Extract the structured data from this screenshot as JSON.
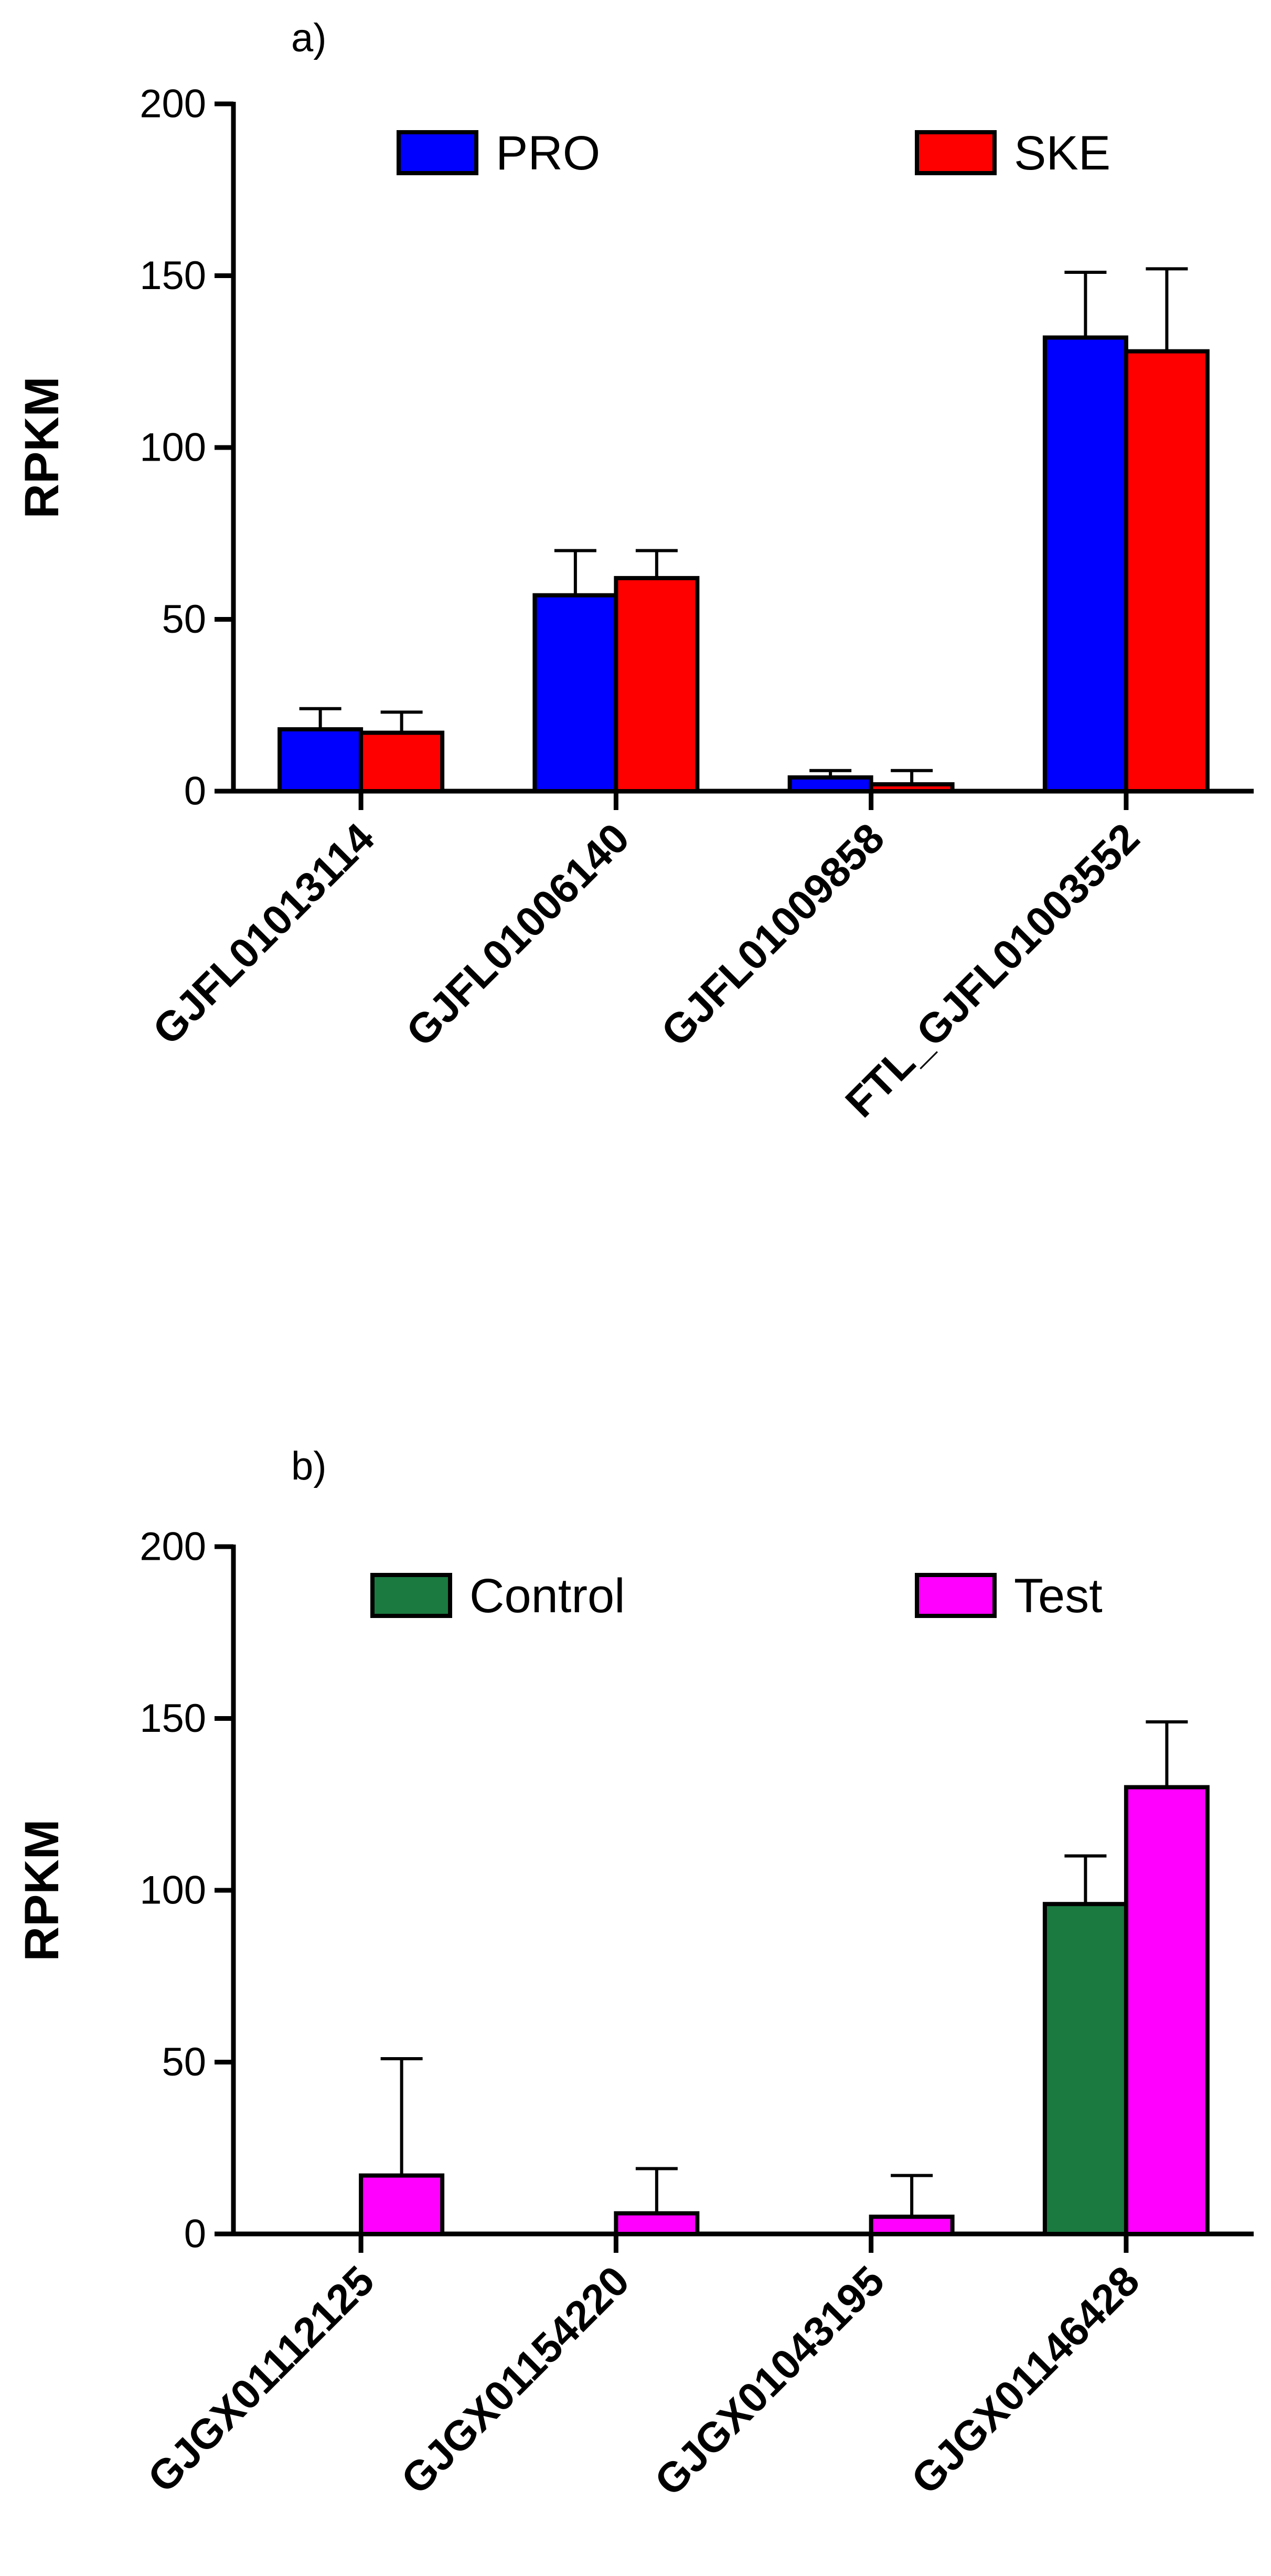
{
  "chart_data": [
    {
      "type": "bar",
      "panel_label": "a)",
      "ylabel": "RPKM",
      "ylim": [
        0,
        200
      ],
      "yticks": [
        "0",
        "50",
        "100",
        "150",
        "200"
      ],
      "categories": [
        "GJFL01013114",
        "GJFL01006140",
        "GJFL01009858",
        "FTL_GJFL01003552"
      ],
      "legend_position": "top",
      "series": [
        {
          "name": "PRO",
          "color": "#0000ff",
          "values": [
            18,
            57,
            4,
            132
          ],
          "errors": [
            6,
            13,
            2,
            19
          ]
        },
        {
          "name": "SKE",
          "color": "#ff0000",
          "values": [
            17,
            62,
            2,
            128
          ],
          "errors": [
            6,
            8,
            4,
            24
          ]
        }
      ]
    },
    {
      "type": "bar",
      "panel_label": "b)",
      "ylabel": "RPKM",
      "ylim": [
        0,
        200
      ],
      "yticks": [
        "0",
        "50",
        "100",
        "150",
        "200"
      ],
      "categories": [
        "GJGX01112125",
        "GJGX01154220",
        "GJGX01043195",
        "GJGX01146428"
      ],
      "legend_position": "top",
      "series": [
        {
          "name": "Control",
          "color": "#1a7a40",
          "values": [
            0,
            0,
            0,
            96
          ],
          "errors": [
            0,
            0,
            0,
            14
          ]
        },
        {
          "name": "Test",
          "color": "#ff00ff",
          "values": [
            17,
            6,
            5,
            130
          ],
          "errors": [
            34,
            13,
            12,
            19
          ]
        }
      ]
    }
  ]
}
